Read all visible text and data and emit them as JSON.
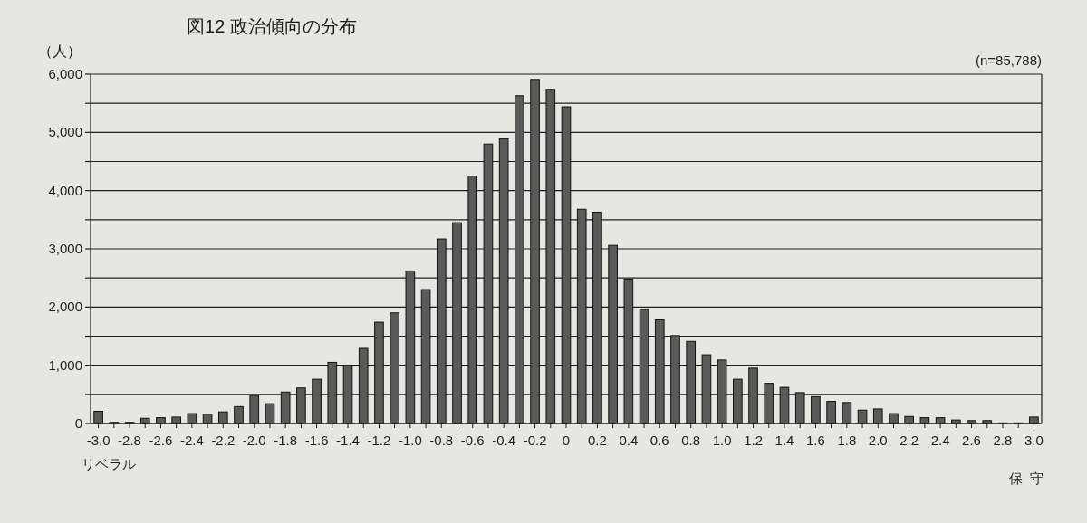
{
  "chart_data": {
    "type": "bar",
    "title": "図12 政治傾向の分布",
    "ylabel": "（人）",
    "categories": [
      "-3.0",
      null,
      "-2.8",
      null,
      "-2.6",
      null,
      "-2.4",
      null,
      "-2.2",
      null,
      "-2.0",
      null,
      "-1.8",
      null,
      "-1.6",
      null,
      "-1.4",
      null,
      "-1.2",
      null,
      "-1.0",
      null,
      "-0.8",
      null,
      "-0.6",
      null,
      "-0.4",
      null,
      "-0.2",
      null,
      "0",
      null,
      "0.2",
      null,
      "0.4",
      null,
      "0.6",
      null,
      "0.8",
      null,
      "1.0",
      null,
      "1.2",
      null,
      "1.4",
      null,
      "1.6",
      null,
      "1.8",
      null,
      "2.0",
      null,
      "2.2",
      null,
      "2.4",
      null,
      "2.6",
      null,
      "2.8",
      null,
      "3.0"
    ],
    "values": [
      210,
      20,
      20,
      90,
      100,
      110,
      170,
      160,
      200,
      290,
      480,
      340,
      540,
      610,
      760,
      1050,
      990,
      1290,
      1740,
      1900,
      2620,
      2300,
      3170,
      3450,
      4250,
      4800,
      4890,
      5630,
      5910,
      5740,
      5440,
      3680,
      3630,
      3060,
      2480,
      1960,
      1780,
      1510,
      1410,
      1180,
      1090,
      760,
      950,
      690,
      620,
      530,
      460,
      380,
      360,
      230,
      250,
      170,
      120,
      100,
      100,
      60,
      50,
      50,
      10,
      10,
      110
    ],
    "color": "#5a5a5a",
    "ylim": [
      0,
      6000
    ],
    "yticks": [
      0,
      {
        "value": 500,
        "label": null
      },
      {
        "value": 1000,
        "label": "1,000"
      },
      {
        "value": 1500,
        "label": null
      },
      {
        "value": 2000,
        "label": "2,000"
      },
      {
        "value": 2500,
        "label": null
      },
      {
        "value": 3000,
        "label": "3,000"
      },
      {
        "value": 3500,
        "label": null
      },
      {
        "value": 4000,
        "label": "4,000"
      },
      {
        "value": 4500,
        "label": null
      },
      {
        "value": 5000,
        "label": "5,000"
      },
      {
        "value": 5500,
        "label": null
      },
      {
        "value": 6000,
        "label": "6,000"
      }
    ],
    "grid": "y",
    "annotations": [
      "(n=85,788)",
      "リベラル",
      "保守"
    ]
  }
}
